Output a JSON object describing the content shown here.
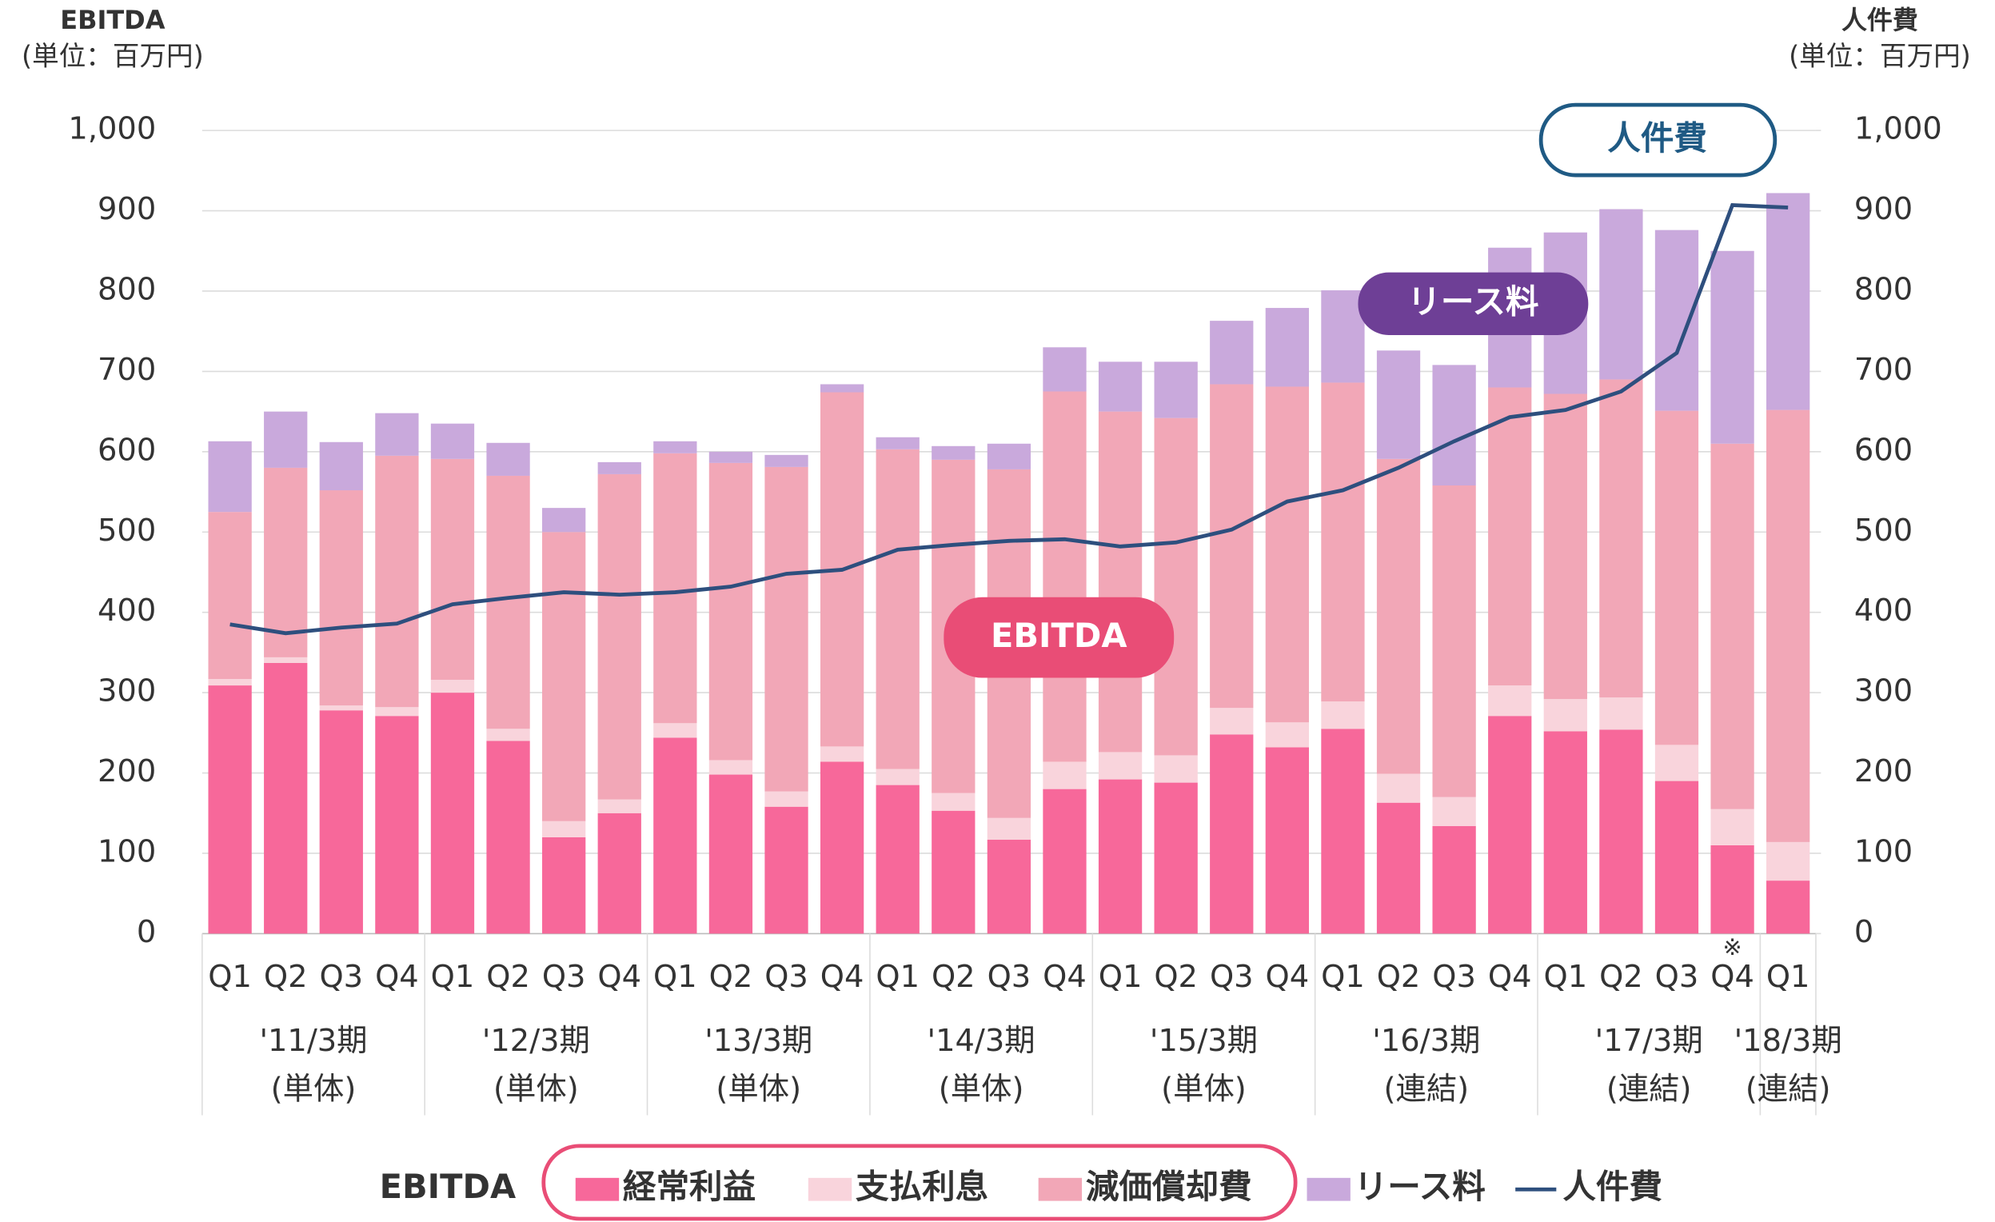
{
  "chart_data": {
    "type": "bar",
    "stacked": true,
    "y_title": "EBITDA",
    "y_unit": "(単位：百万円)",
    "y2_title": "人件費",
    "y2_unit": "(単位：百万円)",
    "ylim": [
      0,
      1000
    ],
    "yticks": [
      0,
      100,
      200,
      300,
      400,
      500,
      600,
      700,
      800,
      900,
      {
        "value": 1000,
        "label": "1,000"
      }
    ],
    "y2lim": [
      0,
      1000
    ],
    "y2ticks": [
      0,
      100,
      200,
      300,
      400,
      500,
      600,
      700,
      800,
      900,
      {
        "value": 1000,
        "label": "1,000"
      }
    ],
    "grid": true,
    "groups": [
      {
        "name": "'11/3期",
        "note": "(単体)",
        "categories": [
          "Q1",
          "Q2",
          "Q3",
          "Q4"
        ]
      },
      {
        "name": "'12/3期",
        "note": "(単体)",
        "categories": [
          "Q1",
          "Q2",
          "Q3",
          "Q4"
        ]
      },
      {
        "name": "'13/3期",
        "note": "(単体)",
        "categories": [
          "Q1",
          "Q2",
          "Q3",
          "Q4"
        ]
      },
      {
        "name": "'14/3期",
        "note": "(単体)",
        "categories": [
          "Q1",
          "Q2",
          "Q3",
          "Q4"
        ]
      },
      {
        "name": "'15/3期",
        "note": "(単体)",
        "categories": [
          "Q1",
          "Q2",
          "Q3",
          "Q4"
        ]
      },
      {
        "name": "'16/3期",
        "note": "(連結)",
        "categories": [
          "Q1",
          "Q2",
          "Q3",
          "Q4"
        ]
      },
      {
        "name": "'17/3期",
        "note": "(連結)",
        "categories": [
          "Q1",
          "Q2",
          "Q3",
          "Q4"
        ]
      },
      {
        "name": "'18/3期",
        "note": "(連結)",
        "categories": [
          "Q1"
        ]
      }
    ],
    "footnote_mark": "※",
    "legend_group_label": "EBITDA",
    "callouts": [
      {
        "text": "人件費"
      },
      {
        "text": "リース料"
      },
      {
        "text": "EBITDA"
      }
    ],
    "series": [
      {
        "name": "経常利益",
        "color": "#f7689a",
        "values": [
          309,
          337,
          278,
          271,
          300,
          240,
          120,
          150,
          244,
          198,
          158,
          214,
          185,
          153,
          117,
          180,
          192,
          188,
          248,
          232,
          255,
          163,
          134,
          271,
          252,
          254,
          190,
          110,
          66
        ]
      },
      {
        "name": "支払利息",
        "color": "#f9d4dc",
        "values": [
          8,
          7,
          6,
          11,
          16,
          15,
          20,
          17,
          18,
          18,
          19,
          19,
          20,
          22,
          27,
          34,
          34,
          34,
          33,
          31,
          34,
          36,
          36,
          38,
          40,
          40,
          45,
          45,
          48
        ]
      },
      {
        "name": "減価償却費",
        "color": "#f2a7b7",
        "values": [
          208,
          236,
          268,
          313,
          275,
          315,
          360,
          405,
          336,
          370,
          404,
          441,
          398,
          415,
          434,
          461,
          424,
          420,
          403,
          418,
          397,
          392,
          388,
          371,
          380,
          396,
          416,
          455,
          538
        ]
      },
      {
        "name": "リース料",
        "color": "#c9a9dc",
        "values": [
          88,
          70,
          60,
          53,
          44,
          41,
          30,
          15,
          15,
          14,
          15,
          10,
          15,
          17,
          32,
          55,
          62,
          70,
          79,
          98,
          115,
          135,
          150,
          174,
          201,
          212,
          225,
          240,
          270
        ]
      },
      {
        "name": "人件費",
        "type": "line",
        "axis": "y2",
        "color": "#2e4f7e",
        "values": [
          385,
          374,
          381,
          386,
          410,
          418,
          425,
          422,
          425,
          432,
          448,
          453,
          478,
          484,
          489,
          491,
          482,
          487,
          503,
          538,
          552,
          580,
          613,
          643,
          652,
          675,
          723,
          907,
          904
        ]
      }
    ]
  }
}
